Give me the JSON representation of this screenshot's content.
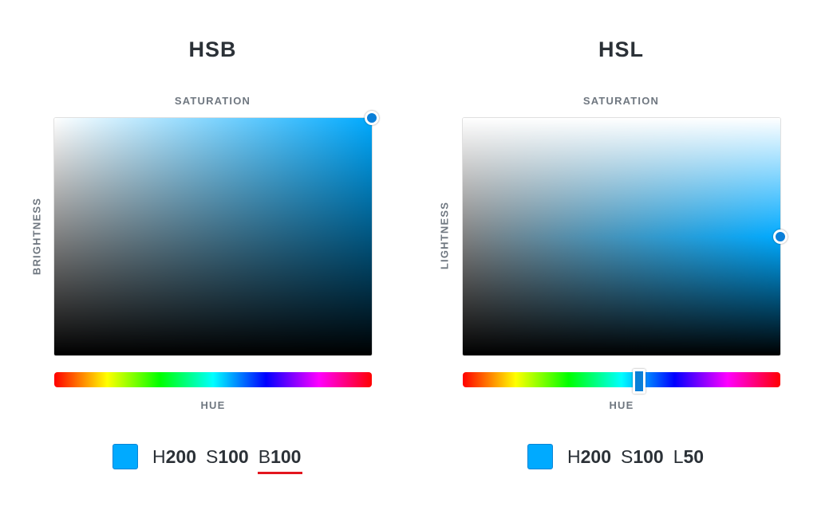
{
  "hsb": {
    "title": "HSB",
    "top_label": "SATURATION",
    "side_label": "BRIGHTNESS",
    "hue_label": "HUE",
    "hue_value": 200,
    "saturation_value": 100,
    "brightness_value": 100,
    "swatch_color": "#00aaff",
    "readout": [
      {
        "key": "H",
        "value": "200"
      },
      {
        "key": "S",
        "value": "100"
      },
      {
        "key": "B",
        "value": "100"
      }
    ],
    "highlighted_component": "B"
  },
  "hsl": {
    "title": "HSL",
    "top_label": "SATURATION",
    "side_label": "LIGHTNESS",
    "hue_label": "HUE",
    "hue_value": 200,
    "saturation_value": 100,
    "lightness_value": 50,
    "swatch_color": "#00aaff",
    "readout": [
      {
        "key": "H",
        "value": "200"
      },
      {
        "key": "S",
        "value": "100"
      },
      {
        "key": "L",
        "value": "50"
      }
    ]
  },
  "colors": {
    "handle": "#0a7fd8",
    "underline": "#e3161e",
    "text_dark": "#2b3137",
    "text_label": "#6f7780"
  }
}
